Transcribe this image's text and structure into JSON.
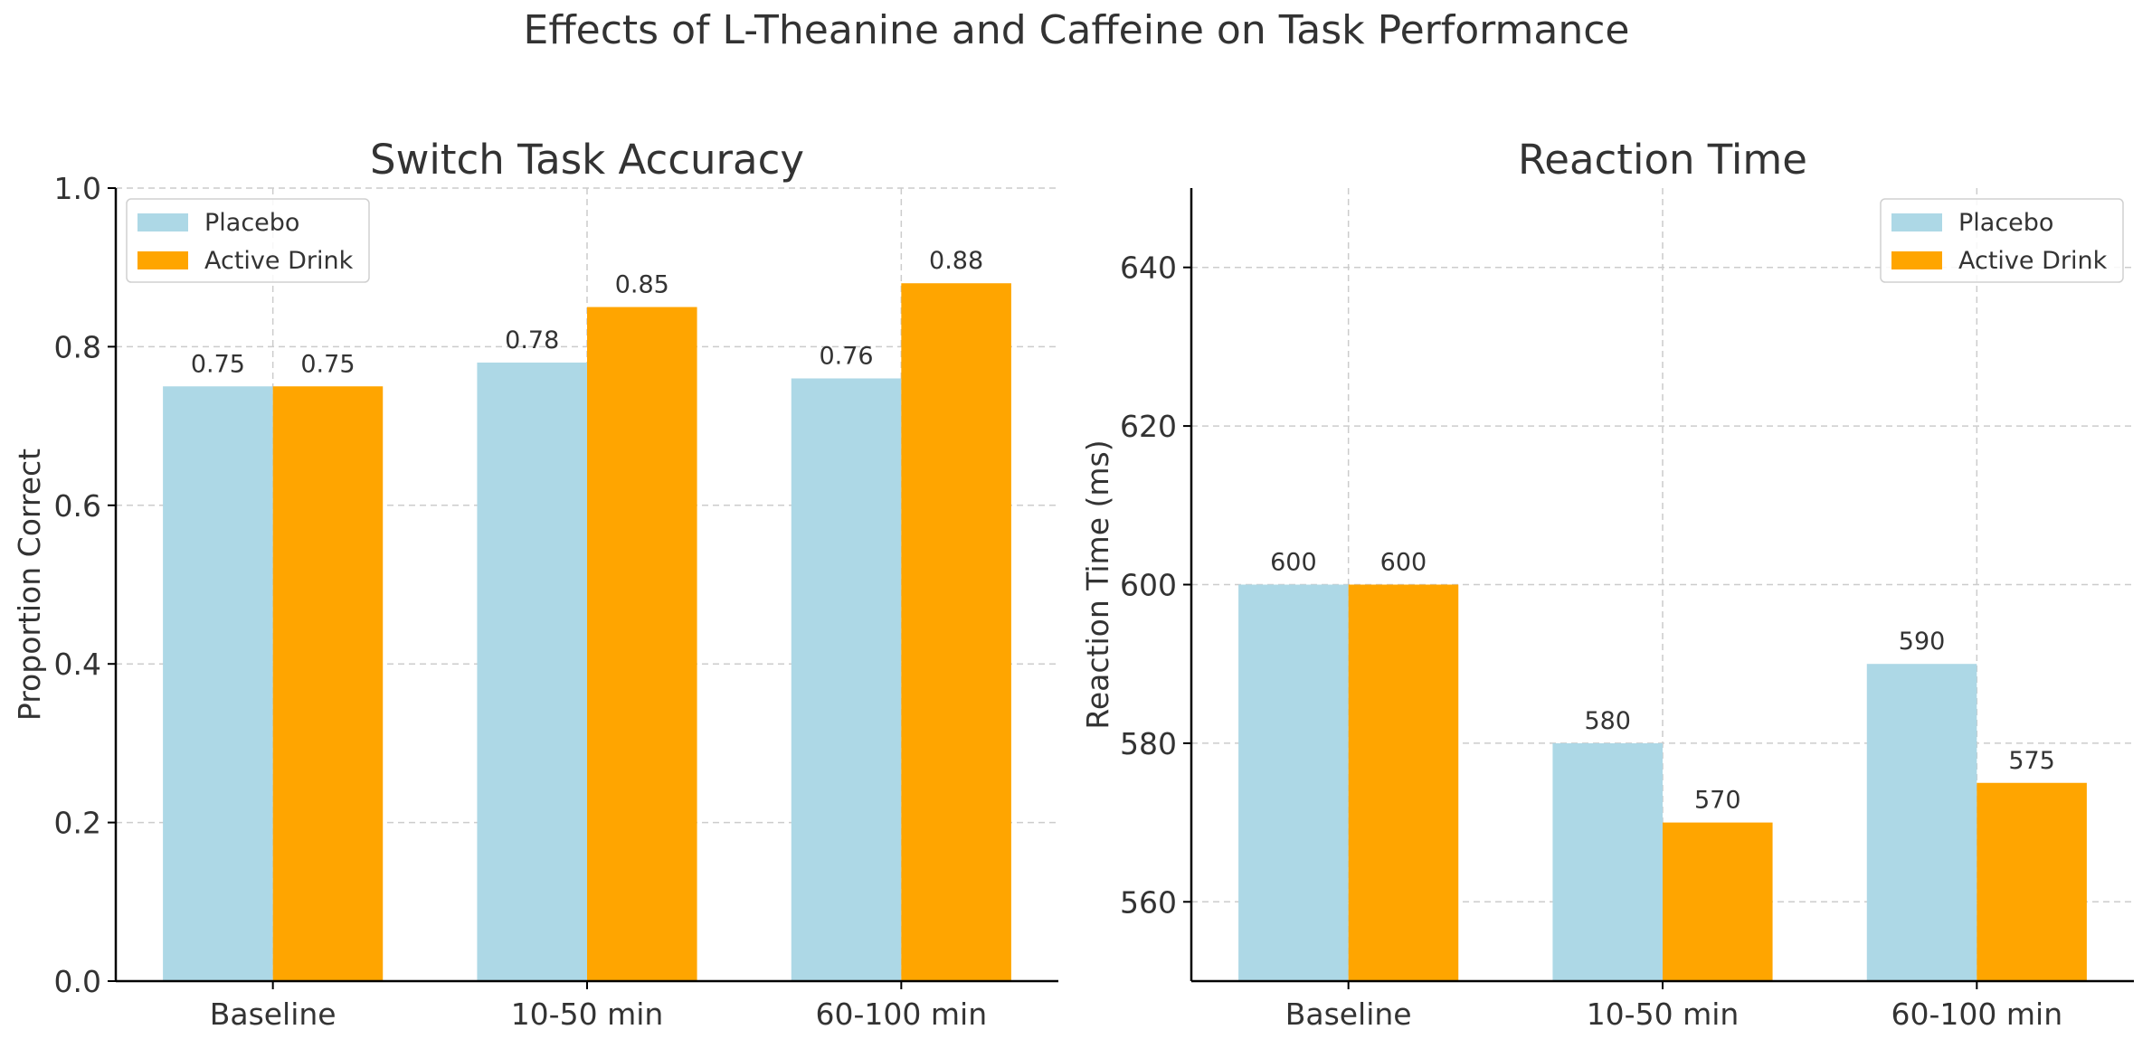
{
  "figure": {
    "title": "Effects of L-Theanine and Caffeine on Task Performance"
  },
  "legend": {
    "placebo": "Placebo",
    "active": "Active Drink"
  },
  "colors": {
    "placebo": "#add8e6",
    "active": "#ffa500",
    "text": "#333333",
    "grid": "#cccccc",
    "axis": "#000000"
  },
  "chart_data": [
    {
      "type": "bar",
      "title": "Switch Task Accuracy",
      "xlabel": "",
      "ylabel": "Proportion Correct",
      "categories": [
        "Baseline",
        "10-50 min",
        "60-100 min"
      ],
      "series": [
        {
          "name": "Placebo",
          "values": [
            0.75,
            0.78,
            0.76
          ],
          "labels": [
            "0.75",
            "0.78",
            "0.76"
          ]
        },
        {
          "name": "Active Drink",
          "values": [
            0.75,
            0.85,
            0.88
          ],
          "labels": [
            "0.75",
            "0.85",
            "0.88"
          ]
        }
      ],
      "ylim": [
        0,
        1.0
      ],
      "yticks": [
        0.0,
        0.2,
        0.4,
        0.6,
        0.8,
        1.0
      ],
      "ytick_labels": [
        "0.0",
        "0.2",
        "0.4",
        "0.6",
        "0.8",
        "1.0"
      ],
      "grid": true,
      "legend_position": "top-left"
    },
    {
      "type": "bar",
      "title": "Reaction Time",
      "xlabel": "",
      "ylabel": "Reaction Time (ms)",
      "categories": [
        "Baseline",
        "10-50 min",
        "60-100 min"
      ],
      "series": [
        {
          "name": "Placebo",
          "values": [
            600,
            580,
            590
          ],
          "labels": [
            "600",
            "580",
            "590"
          ]
        },
        {
          "name": "Active Drink",
          "values": [
            600,
            570,
            575
          ],
          "labels": [
            "600",
            "570",
            "575"
          ]
        }
      ],
      "ylim": [
        550,
        650
      ],
      "yticks": [
        560,
        580,
        600,
        620,
        640
      ],
      "ytick_labels": [
        "560",
        "580",
        "600",
        "620",
        "640"
      ],
      "grid": true,
      "legend_position": "top-right"
    }
  ]
}
